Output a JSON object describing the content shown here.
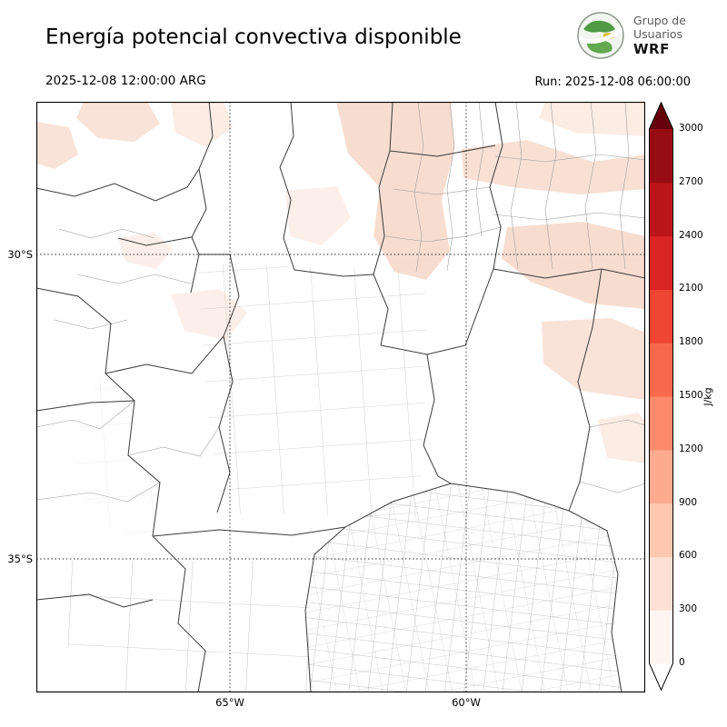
{
  "header": {
    "title": "Energía potencial convectiva disponible",
    "valid_time": "2025-12-08 12:00:00 ARG",
    "run_label": "Run: 2025-12-08 06:00:00",
    "logo": {
      "line1": "Grupo de",
      "line2": "Usuarios",
      "line3": "WRF"
    }
  },
  "map": {
    "y_tick_labels": [
      "30°S",
      "35°S"
    ],
    "x_tick_labels": [
      "65°W",
      "60°W"
    ]
  },
  "colorbar": {
    "unit": "J/kg",
    "tick_labels_top_to_bottom": [
      "3000",
      "2700",
      "2400",
      "2100",
      "1800",
      "1500",
      "1200",
      "900",
      "600",
      "300",
      "0"
    ],
    "segment_colors_bottom_to_top": [
      "#fff5f0",
      "#fee1d4",
      "#fdc7b0",
      "#fcab8f",
      "#fc8a6a",
      "#f8694c",
      "#ef4533",
      "#d92523",
      "#bb151a",
      "#980c13"
    ],
    "under_color": "#ffffff",
    "over_color": "#67000d"
  },
  "chart_data": {
    "type": "heatmap",
    "title": "Energía potencial convectiva disponible",
    "valid_time": "2025-12-08 12:00:00 ARG",
    "run_time": "2025-12-08 06:00:00",
    "units": "J/kg",
    "colormap": "Reds",
    "levels": [
      0,
      300,
      600,
      900,
      1200,
      1500,
      1800,
      2100,
      2400,
      2700,
      3000
    ],
    "colorbar_extend": "both",
    "lat_gridline_labels": [
      "30°S",
      "35°S"
    ],
    "lon_gridline_labels": [
      "65°W",
      "60°W"
    ],
    "grid_style": "dotted",
    "legend_position": "right",
    "region": "central Argentina (approx. 27°S–37°S, 68°W–57°W) with province and department boundaries",
    "observed_values_summary": "CAPE near 0 J/kg over most of the domain; scattered patches in the 0–300 J/kg class across the northern and northeastern part of the map; no visible areas above 300 J/kg"
  }
}
